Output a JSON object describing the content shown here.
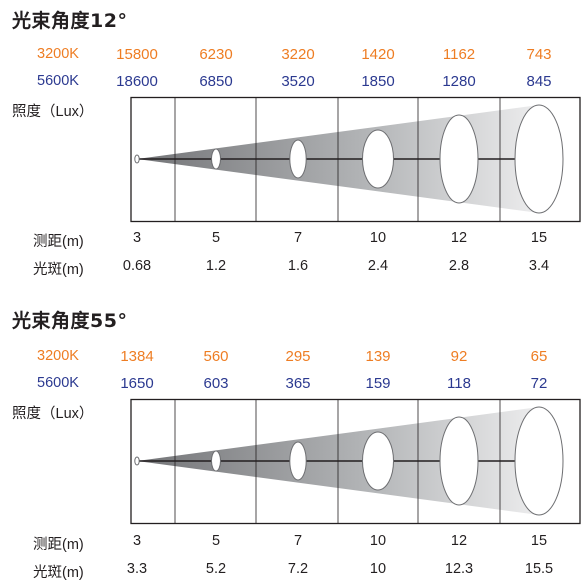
{
  "colors": {
    "k3200": "#ee7d23",
    "k5600": "#2b3990",
    "ink": "#231f20",
    "beam_dark": "#737477",
    "beam_light": "#ededee"
  },
  "labels": {
    "k3200": "3200K",
    "k5600": "5600K",
    "illuminance": "照度（Lux）",
    "distance": "测距(m)",
    "spot": "光斑(m)"
  },
  "panels": [
    {
      "title": "光束角度12°",
      "distance": [
        "3",
        "5",
        "7",
        "10",
        "12",
        "15"
      ],
      "spot": [
        "0.68",
        "1.2",
        "1.6",
        "2.4",
        "2.8",
        "3.4"
      ],
      "lux_3200": [
        "15800",
        "6230",
        "3220",
        "1420",
        "1162",
        "743"
      ],
      "lux_5600": [
        "18600",
        "6850",
        "3520",
        "1850",
        "1280",
        "845"
      ]
    },
    {
      "title": "光束角度55°",
      "distance": [
        "3",
        "5",
        "7",
        "10",
        "12",
        "15"
      ],
      "spot": [
        "3.3",
        "5.2",
        "7.2",
        "10",
        "12.3",
        "15.5"
      ],
      "lux_3200": [
        "1384",
        "560",
        "295",
        "139",
        "92",
        "65"
      ],
      "lux_5600": [
        "1650",
        "603",
        "365",
        "159",
        "118",
        "72"
      ]
    }
  ]
}
